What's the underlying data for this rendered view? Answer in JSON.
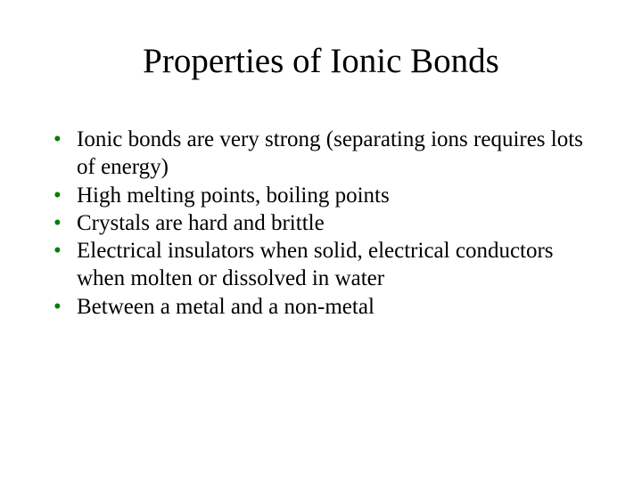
{
  "slide": {
    "title": "Properties of Ionic Bonds",
    "bullets": [
      "Ionic bonds are very strong (separating ions requires lots of energy)",
      "High melting points, boiling points",
      "Crystals are hard and brittle",
      "Electrical insulators when solid, electrical conductors when molten or dissolved in water",
      "Between a metal and a non-metal"
    ],
    "bullet_color": "#008000",
    "text_color": "#000000",
    "background_color": "#ffffff",
    "title_fontsize": 39,
    "body_fontsize": 25,
    "font_family": "Times New Roman"
  }
}
